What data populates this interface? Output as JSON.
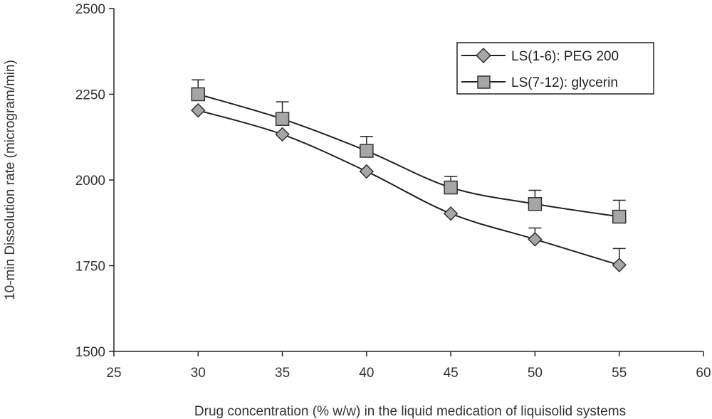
{
  "chart_data": {
    "type": "line",
    "title": "",
    "xlabel": "Drug concentration (% w/w) in the liquid medication of liquisolid systems",
    "ylabel": "10-min Dissolution rate (microgram/min)",
    "xlim": [
      25,
      60
    ],
    "ylim": [
      1500,
      2500
    ],
    "xticks": [
      25,
      30,
      35,
      40,
      45,
      50,
      55,
      60
    ],
    "yticks": [
      1500,
      1750,
      2000,
      2250,
      2500
    ],
    "grid": false,
    "legend_position": "top-right",
    "x": [
      30,
      35,
      40,
      45,
      50,
      55
    ],
    "series": [
      {
        "name": "LS(1-6): PEG 200",
        "marker": "diamond",
        "values": [
          2203,
          2133,
          2025,
          1902,
          1827,
          1752
        ],
        "error": [
          0,
          0,
          0,
          0,
          33,
          48
        ]
      },
      {
        "name": "LS(7-12): glycerin",
        "marker": "square",
        "values": [
          2250,
          2178,
          2085,
          1978,
          1930,
          1893
        ],
        "error": [
          42,
          50,
          42,
          32,
          40,
          48
        ]
      }
    ],
    "colors": {
      "line": "#222222",
      "marker_fill": "#a6a6a6",
      "marker_stroke": "#333333"
    }
  }
}
